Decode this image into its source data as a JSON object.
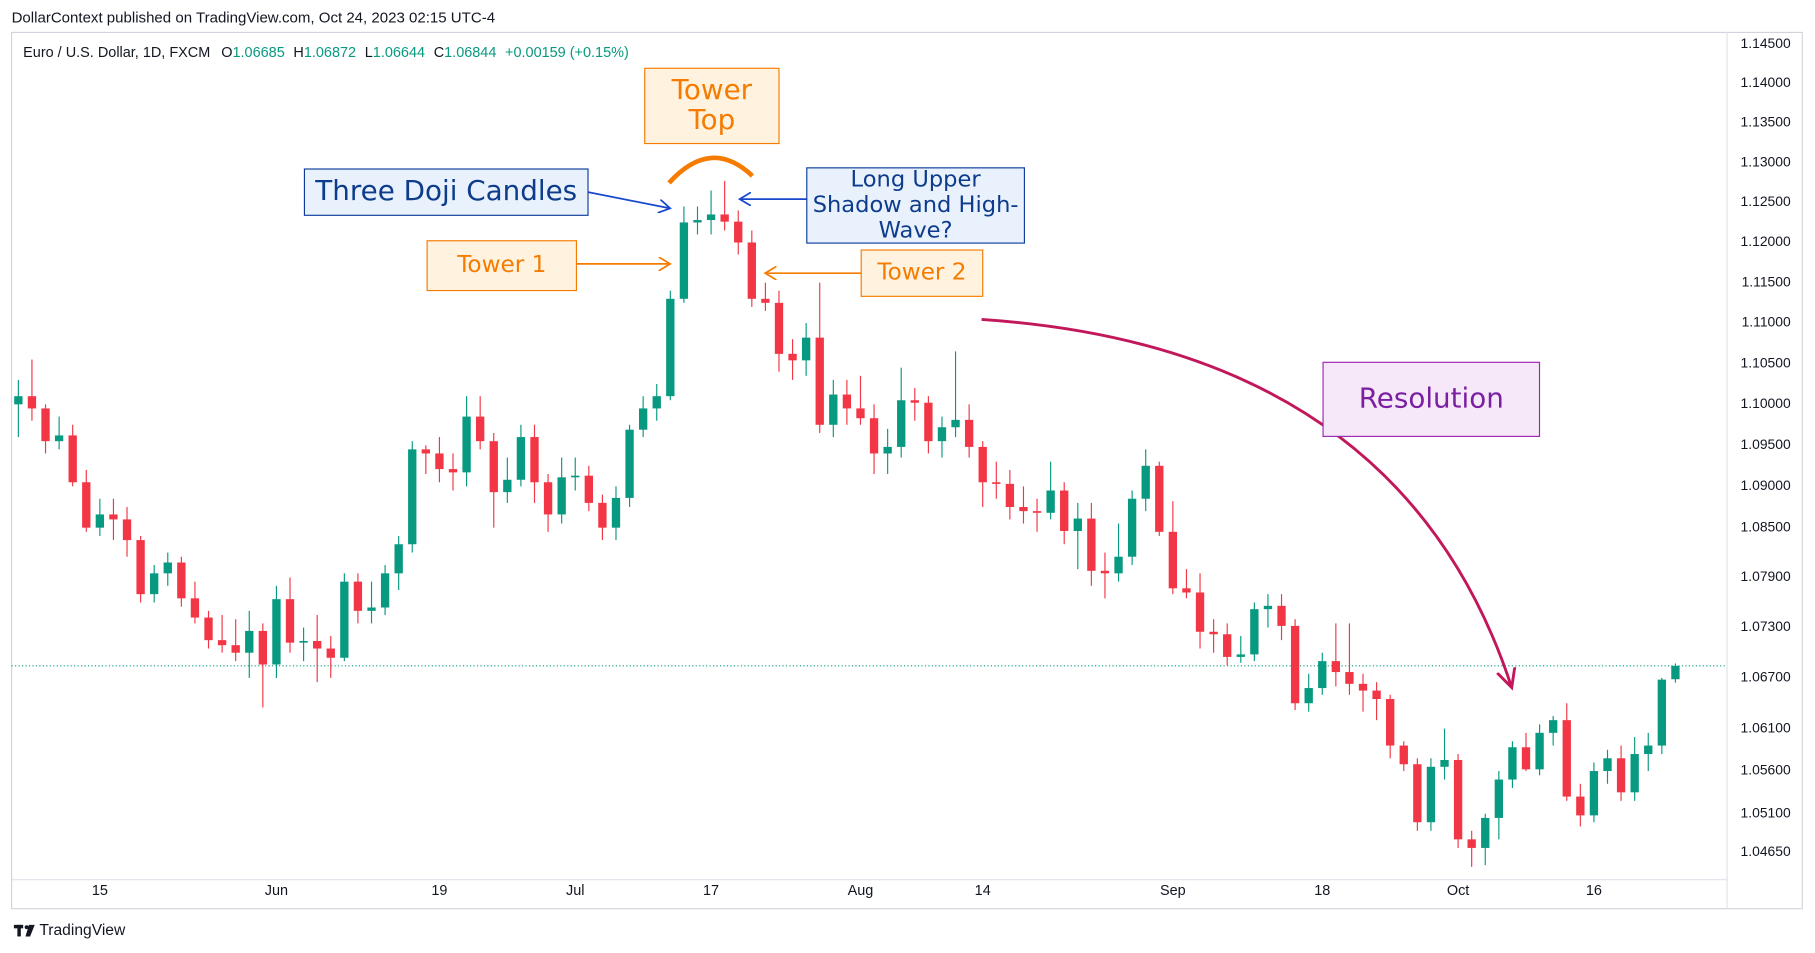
{
  "chart_data": {
    "type": "candlestick",
    "publisher_note": "DollarContext published on TradingView.com, Oct 24, 2023 02:15 UTC-4",
    "symbol": "Euro / U.S. Dollar, 1D, FXCM",
    "ohlc_labels": [
      "O",
      "H",
      "L",
      "C"
    ],
    "change_label": "+0.00159 (+0.15%)",
    "brand": "TradingView",
    "up_color": "#089981",
    "down_color": "#f23645",
    "log_scale": true,
    "grid": false,
    "xlim": [
      -0.5,
      125.8
    ],
    "ylim": [
      1.0433,
      1.1465
    ],
    "yticks": [
      {
        "value": 1.145,
        "label": "1.14500"
      },
      {
        "value": 1.14,
        "label": "1.14000"
      },
      {
        "value": 1.135,
        "label": "1.13500"
      },
      {
        "value": 1.13,
        "label": "1.13000"
      },
      {
        "value": 1.125,
        "label": "1.12500"
      },
      {
        "value": 1.12,
        "label": "1.12000"
      },
      {
        "value": 1.115,
        "label": "1.11500"
      },
      {
        "value": 1.11,
        "label": "1.11000"
      },
      {
        "value": 1.105,
        "label": "1.10500"
      },
      {
        "value": 1.1,
        "label": "1.10000"
      },
      {
        "value": 1.095,
        "label": "1.09500"
      },
      {
        "value": 1.09,
        "label": "1.09000"
      },
      {
        "value": 1.085,
        "label": "1.08500"
      },
      {
        "value": 1.079,
        "label": "1.07900"
      },
      {
        "value": 1.073,
        "label": "1.07300"
      },
      {
        "value": 1.067,
        "label": "1.06700"
      },
      {
        "value": 1.061,
        "label": "1.06100"
      },
      {
        "value": 1.056,
        "label": "1.05600"
      },
      {
        "value": 1.051,
        "label": "1.05100"
      },
      {
        "value": 1.0465,
        "label": "1.04650"
      }
    ],
    "xticks": [
      {
        "value": 6,
        "label": "15"
      },
      {
        "value": 19,
        "label": "Jun"
      },
      {
        "value": 31,
        "label": "19"
      },
      {
        "value": 41,
        "label": "Jul"
      },
      {
        "value": 51,
        "label": "17"
      },
      {
        "value": 62,
        "label": "Aug"
      },
      {
        "value": 71,
        "label": "14"
      },
      {
        "value": 85,
        "label": "Sep"
      },
      {
        "value": 96,
        "label": "18"
      },
      {
        "value": 106,
        "label": "Oct"
      },
      {
        "value": 116,
        "label": "16"
      }
    ],
    "ohlc": [
      [
        1.1,
        1.103,
        1.096,
        1.101
      ],
      [
        1.101,
        1.1055,
        1.098,
        1.0995
      ],
      [
        1.0995,
        1.1,
        1.094,
        1.0955
      ],
      [
        1.0955,
        1.0985,
        1.0945,
        1.0962
      ],
      [
        1.0962,
        1.0975,
        1.09,
        1.0905
      ],
      [
        1.0905,
        1.092,
        1.0845,
        1.085
      ],
      [
        1.085,
        1.0885,
        1.084,
        1.0866
      ],
      [
        1.0866,
        1.0885,
        1.0835,
        1.086
      ],
      [
        1.086,
        1.0875,
        1.0815,
        1.0835
      ],
      [
        1.0835,
        1.084,
        1.076,
        1.077
      ],
      [
        1.077,
        1.0805,
        1.076,
        1.0795
      ],
      [
        1.0795,
        1.082,
        1.078,
        1.0808
      ],
      [
        1.0808,
        1.0815,
        1.0755,
        1.0765
      ],
      [
        1.0765,
        1.0785,
        1.0735,
        1.0742
      ],
      [
        1.0742,
        1.075,
        1.0705,
        1.0715
      ],
      [
        1.0715,
        1.0745,
        1.07,
        1.0709
      ],
      [
        1.0709,
        1.074,
        1.069,
        1.07
      ],
      [
        1.07,
        1.075,
        1.067,
        1.0726
      ],
      [
        1.0726,
        1.0735,
        1.0635,
        1.0686
      ],
      [
        1.0686,
        1.078,
        1.067,
        1.0764
      ],
      [
        1.0764,
        1.079,
        1.07,
        1.0712
      ],
      [
        1.0712,
        1.073,
        1.069,
        1.0714
      ],
      [
        1.0714,
        1.0745,
        1.0665,
        1.0705
      ],
      [
        1.0705,
        1.072,
        1.067,
        1.0694
      ],
      [
        1.0694,
        1.0795,
        1.069,
        1.0785
      ],
      [
        1.0785,
        1.0795,
        1.0735,
        1.075
      ],
      [
        1.075,
        1.0785,
        1.0735,
        1.0754
      ],
      [
        1.0754,
        1.0805,
        1.0745,
        1.0795
      ],
      [
        1.0795,
        1.084,
        1.0775,
        1.083
      ],
      [
        1.083,
        1.0955,
        1.082,
        1.0945
      ],
      [
        1.0945,
        1.095,
        1.0915,
        1.094
      ],
      [
        1.094,
        1.096,
        1.0905,
        1.0921
      ],
      [
        1.0921,
        1.094,
        1.0895,
        1.0917
      ],
      [
        1.0917,
        1.101,
        1.09,
        1.0985
      ],
      [
        1.0985,
        1.101,
        1.0945,
        1.0955
      ],
      [
        1.0955,
        1.0965,
        1.085,
        1.0893
      ],
      [
        1.0893,
        1.0935,
        1.088,
        1.0908
      ],
      [
        1.0908,
        1.0975,
        1.09,
        1.096
      ],
      [
        1.096,
        1.0975,
        1.088,
        1.0905
      ],
      [
        1.0905,
        1.0915,
        1.0845,
        1.0866
      ],
      [
        1.0866,
        1.0935,
        1.0855,
        1.0911
      ],
      [
        1.0911,
        1.0935,
        1.0895,
        1.0913
      ],
      [
        1.0913,
        1.0925,
        1.087,
        1.088
      ],
      [
        1.088,
        1.089,
        1.0835,
        1.085
      ],
      [
        1.085,
        1.09,
        1.0835,
        1.0886
      ],
      [
        1.0886,
        1.0975,
        1.0875,
        1.0969
      ],
      [
        1.0969,
        1.101,
        1.096,
        1.0995
      ],
      [
        1.0995,
        1.1025,
        1.098,
        1.101
      ],
      [
        1.101,
        1.114,
        1.1005,
        1.113
      ],
      [
        1.113,
        1.1245,
        1.1125,
        1.1225
      ],
      [
        1.1225,
        1.1245,
        1.121,
        1.1228
      ],
      [
        1.1228,
        1.1265,
        1.121,
        1.1235
      ],
      [
        1.1235,
        1.1277,
        1.1215,
        1.1226
      ],
      [
        1.1226,
        1.124,
        1.1185,
        1.12
      ],
      [
        1.12,
        1.1215,
        1.112,
        1.113
      ],
      [
        1.113,
        1.115,
        1.1115,
        1.1125
      ],
      [
        1.1125,
        1.114,
        1.104,
        1.1062
      ],
      [
        1.1062,
        1.108,
        1.103,
        1.1054
      ],
      [
        1.1054,
        1.11,
        1.1035,
        1.1082
      ],
      [
        1.1082,
        1.115,
        1.0965,
        1.0975
      ],
      [
        1.0975,
        1.103,
        1.096,
        1.1012
      ],
      [
        1.1012,
        1.103,
        1.0975,
        1.0995
      ],
      [
        1.0995,
        1.1035,
        1.0975,
        1.0983
      ],
      [
        1.0983,
        1.1,
        1.0915,
        1.094
      ],
      [
        1.094,
        1.097,
        1.0915,
        1.0948
      ],
      [
        1.0948,
        1.1045,
        1.0935,
        1.1005
      ],
      [
        1.1005,
        1.102,
        1.098,
        1.1002
      ],
      [
        1.1002,
        1.101,
        1.094,
        1.0955
      ],
      [
        1.0955,
        1.0985,
        1.0935,
        1.0972
      ],
      [
        1.0972,
        1.1065,
        1.096,
        1.0981
      ],
      [
        1.0981,
        1.1,
        1.0935,
        1.0948
      ],
      [
        1.0948,
        1.0955,
        1.0875,
        1.0905
      ],
      [
        1.0905,
        1.093,
        1.0885,
        1.0903
      ],
      [
        1.0903,
        1.092,
        1.086,
        1.0875
      ],
      [
        1.0875,
        1.09,
        1.0855,
        1.087
      ],
      [
        1.087,
        1.0885,
        1.0845,
        1.0868
      ],
      [
        1.0868,
        1.093,
        1.086,
        1.0895
      ],
      [
        1.0895,
        1.0905,
        1.083,
        1.0846
      ],
      [
        1.0846,
        1.088,
        1.08,
        1.0861
      ],
      [
        1.0861,
        1.088,
        1.078,
        1.0798
      ],
      [
        1.0798,
        1.082,
        1.0765,
        1.0795
      ],
      [
        1.0795,
        1.0855,
        1.0785,
        1.0815
      ],
      [
        1.0815,
        1.0895,
        1.0805,
        1.0885
      ],
      [
        1.0885,
        1.0945,
        1.087,
        1.0925
      ],
      [
        1.0925,
        1.093,
        1.084,
        1.0845
      ],
      [
        1.0845,
        1.0882,
        1.077,
        1.0777
      ],
      [
        1.0777,
        1.08,
        1.0765,
        1.0772
      ],
      [
        1.0772,
        1.0795,
        1.0705,
        1.0725
      ],
      [
        1.0725,
        1.074,
        1.07,
        1.0722
      ],
      [
        1.0722,
        1.0735,
        1.0685,
        1.0695
      ],
      [
        1.0695,
        1.072,
        1.0688,
        1.0698
      ],
      [
        1.0698,
        1.076,
        1.069,
        1.0752
      ],
      [
        1.0752,
        1.077,
        1.073,
        1.0756
      ],
      [
        1.0756,
        1.077,
        1.0715,
        1.0732
      ],
      [
        1.0732,
        1.074,
        1.0632,
        1.064
      ],
      [
        1.064,
        1.0675,
        1.063,
        1.0658
      ],
      [
        1.0658,
        1.07,
        1.065,
        1.069
      ],
      [
        1.069,
        1.0735,
        1.066,
        1.0677
      ],
      [
        1.0677,
        1.0735,
        1.065,
        1.0663
      ],
      [
        1.0663,
        1.0675,
        1.063,
        1.0655
      ],
      [
        1.0655,
        1.0665,
        1.062,
        1.0645
      ],
      [
        1.0645,
        1.065,
        1.0575,
        1.059
      ],
      [
        1.059,
        1.0595,
        1.056,
        1.0568
      ],
      [
        1.0568,
        1.0575,
        1.049,
        1.05
      ],
      [
        1.05,
        1.0575,
        1.049,
        1.0565
      ],
      [
        1.0565,
        1.061,
        1.055,
        1.0573
      ],
      [
        1.0573,
        1.058,
        1.047,
        1.048
      ],
      [
        1.048,
        1.049,
        1.0448,
        1.047
      ],
      [
        1.047,
        1.051,
        1.045,
        1.0505
      ],
      [
        1.0505,
        1.056,
        1.048,
        1.055
      ],
      [
        1.055,
        1.0595,
        1.054,
        1.0588
      ],
      [
        1.0588,
        1.0605,
        1.056,
        1.0562
      ],
      [
        1.0562,
        1.0615,
        1.0555,
        1.0605
      ],
      [
        1.0605,
        1.0625,
        1.059,
        1.062
      ],
      [
        1.062,
        1.064,
        1.0525,
        1.053
      ],
      [
        1.053,
        1.0545,
        1.0495,
        1.0508
      ],
      [
        1.0508,
        1.057,
        1.05,
        1.056
      ],
      [
        1.056,
        1.0585,
        1.0545,
        1.0575
      ],
      [
        1.0575,
        1.059,
        1.0525,
        1.0535
      ],
      [
        1.0535,
        1.06,
        1.0525,
        1.058
      ],
      [
        1.058,
        1.0605,
        1.056,
        1.059
      ],
      [
        1.059,
        1.067,
        1.058,
        1.0668
      ],
      [
        1.06685,
        1.06872,
        1.06644,
        1.06844
      ]
    ],
    "annotations": [
      {
        "lines": [
          "Tower",
          "Top"
        ]
      },
      {
        "lines": [
          "Three Doji Candles"
        ]
      },
      {
        "lines": [
          "Long Upper",
          "Shadow and High-",
          "Wave?"
        ]
      },
      {
        "lines": [
          "Tower 1"
        ]
      },
      {
        "lines": [
          "Tower 2"
        ]
      },
      {
        "lines": [
          "Resolution"
        ]
      }
    ]
  }
}
